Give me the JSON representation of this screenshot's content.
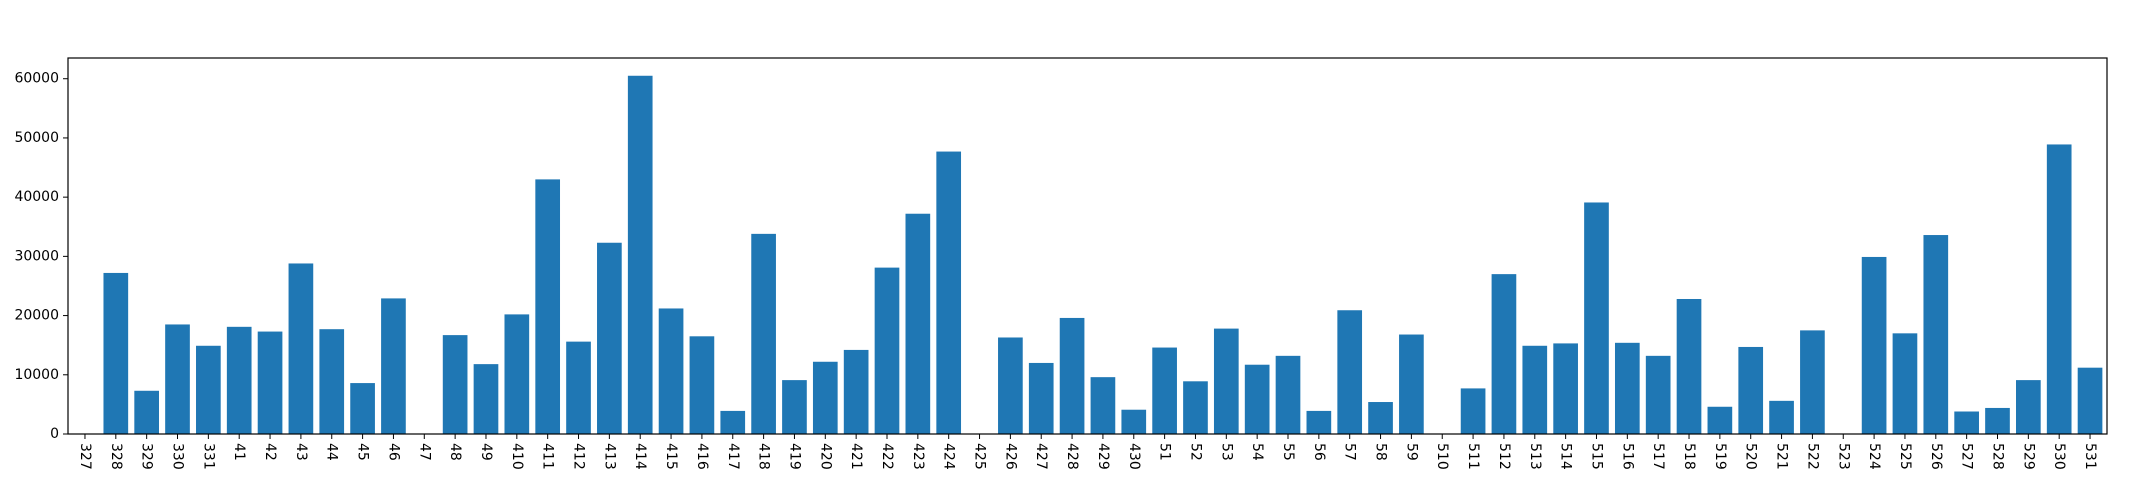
{
  "chart_data": {
    "type": "bar",
    "title": "",
    "xlabel": "",
    "ylabel": "",
    "ylim": [
      0,
      63500
    ],
    "yticks": [
      0,
      10000,
      20000,
      30000,
      40000,
      50000,
      60000
    ],
    "grid": false,
    "bar_color": "#1f77b4",
    "categories": [
      "327",
      "328",
      "329",
      "330",
      "331",
      "41",
      "42",
      "43",
      "44",
      "45",
      "46",
      "47",
      "48",
      "49",
      "410",
      "411",
      "412",
      "413",
      "414",
      "415",
      "416",
      "417",
      "418",
      "419",
      "420",
      "421",
      "422",
      "423",
      "424",
      "425",
      "426",
      "427",
      "428",
      "429",
      "430",
      "51",
      "52",
      "53",
      "54",
      "55",
      "56",
      "57",
      "58",
      "59",
      "510",
      "511",
      "512",
      "513",
      "514",
      "515",
      "516",
      "517",
      "518",
      "519",
      "520",
      "521",
      "522",
      "523",
      "524",
      "525",
      "526",
      "527",
      "528",
      "529",
      "530",
      "531"
    ],
    "values": [
      0,
      27200,
      7300,
      18500,
      14900,
      18100,
      17300,
      28800,
      17700,
      8600,
      22900,
      0,
      16700,
      11800,
      20200,
      43000,
      15600,
      32300,
      60500,
      21200,
      16500,
      3900,
      33800,
      9100,
      12200,
      14200,
      28100,
      37200,
      47700,
      0,
      16300,
      12000,
      19600,
      9600,
      4100,
      14600,
      8900,
      17800,
      11700,
      13200,
      3900,
      20900,
      5400,
      16800,
      0,
      7700,
      27000,
      14900,
      15300,
      39100,
      15400,
      13200,
      22800,
      4600,
      14700,
      5600,
      17500,
      0,
      29900,
      17000,
      33600,
      3800,
      4400,
      9100,
      48900,
      11200
    ]
  }
}
